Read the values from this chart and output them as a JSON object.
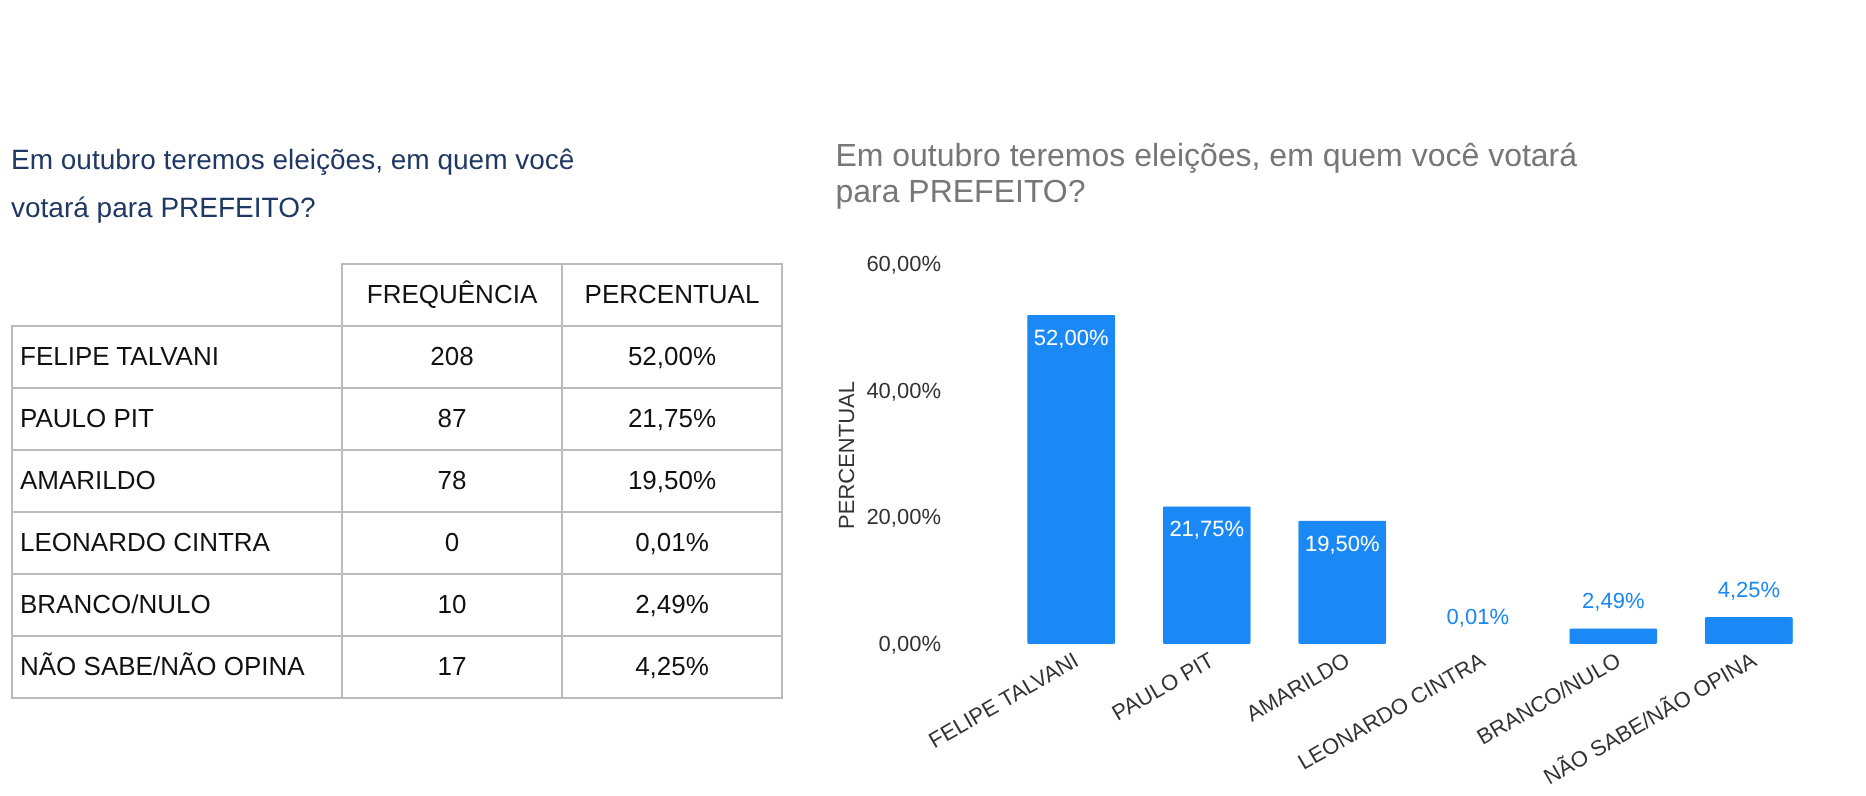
{
  "chart_data": [
    {
      "type": "other",
      "title": "Em outubro teremos eleições, em quem você votará para PREFEITO?",
      "annotations": [
        "FREQUÊNCIA",
        "PERCENTUAL",
        "FELIPE TALVANI",
        "208",
        "52,00%",
        "PAULO PIT",
        "87",
        "21,75%",
        "AMARILDO",
        "78",
        "19,50%",
        "LEONARDO CINTRA",
        "0",
        "0,01%",
        "BRANCO/NULO",
        "10",
        "2,49%",
        "NÃO SABE/NÃO OPINA",
        "17",
        "4,25%"
      ]
    },
    {
      "type": "bar",
      "title": "Em outubro teremos eleições, em quem você votará para PREFEITO?",
      "ylabel": "PERCENTUAL",
      "categories": [
        "FELIPE TALVANI",
        "PAULO PIT",
        "AMARILDO",
        "LEONARDO CINTRA",
        "BRANCO/NULO",
        "NÃO SABE/NÃO OPINA"
      ],
      "values": [
        52.0,
        21.75,
        19.5,
        0.01,
        2.49,
        4.25
      ],
      "color": "#1a88f5",
      "value_labels": [
        "52,00%",
        "21,75%",
        "19,50%",
        "0,01%",
        "2,49%",
        "4,25%"
      ],
      "ylim": [
        0,
        60
      ],
      "yticks": [
        {
          "value": 0,
          "label": "0,00%"
        },
        {
          "value": 20,
          "label": "20,00%"
        },
        {
          "value": 40,
          "label": "40,00%"
        },
        {
          "value": 60,
          "label": "60,00%"
        }
      ],
      "grid": false
    }
  ]
}
